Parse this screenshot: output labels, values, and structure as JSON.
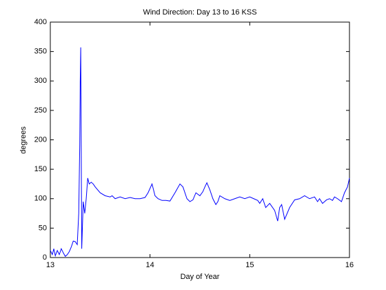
{
  "chart_data": {
    "type": "line",
    "title": "Wind Direction: Day 13 to 16 KSS",
    "x_label": "Day of Year",
    "y_label": "degrees",
    "xlim": [
      13,
      16
    ],
    "xticks": [
      13,
      14,
      15,
      16
    ],
    "ylim": [
      0,
      400
    ],
    "yticks": [
      0,
      50,
      100,
      150,
      200,
      250,
      300,
      350,
      400
    ],
    "series": [
      {
        "name": "wind direction",
        "color": "#0000ff",
        "x": [
          13.0,
          13.02,
          13.035,
          13.05,
          13.07,
          13.09,
          13.11,
          13.13,
          13.15,
          13.17,
          13.19,
          13.21,
          13.23,
          13.25,
          13.27,
          13.285,
          13.295,
          13.3,
          13.305,
          13.31,
          13.315,
          13.33,
          13.345,
          13.36,
          13.375,
          13.39,
          13.41,
          13.43,
          13.45,
          13.5,
          13.55,
          13.6,
          13.62,
          13.65,
          13.7,
          13.75,
          13.8,
          13.85,
          13.9,
          13.95,
          13.98,
          14.02,
          14.05,
          14.08,
          14.12,
          14.16,
          14.2,
          14.25,
          14.3,
          14.33,
          14.37,
          14.4,
          14.43,
          14.46,
          14.5,
          14.53,
          14.55,
          14.57,
          14.6,
          14.63,
          14.66,
          14.68,
          14.7,
          14.75,
          14.8,
          14.85,
          14.9,
          14.95,
          15.0,
          15.04,
          15.08,
          15.1,
          15.13,
          15.16,
          15.2,
          15.25,
          15.28,
          15.3,
          15.32,
          15.35,
          15.4,
          15.45,
          15.5,
          15.55,
          15.6,
          15.65,
          15.68,
          15.7,
          15.73,
          15.77,
          15.8,
          15.83,
          15.85,
          15.88,
          15.92,
          15.95,
          15.98,
          16.0
        ],
        "values": [
          12,
          5,
          15,
          3,
          12,
          5,
          15,
          8,
          2,
          5,
          10,
          18,
          28,
          27,
          22,
          75,
          190,
          300,
          357,
          190,
          15,
          95,
          75,
          100,
          135,
          125,
          128,
          125,
          120,
          110,
          105,
          103,
          105,
          100,
          103,
          100,
          102,
          100,
          100,
          102,
          110,
          125,
          105,
          100,
          97,
          97,
          96,
          110,
          125,
          120,
          100,
          95,
          98,
          110,
          105,
          112,
          120,
          127,
          115,
          100,
          90,
          95,
          105,
          100,
          97,
          100,
          103,
          100,
          103,
          100,
          97,
          92,
          100,
          85,
          92,
          80,
          62,
          85,
          90,
          65,
          85,
          98,
          100,
          105,
          100,
          103,
          95,
          100,
          92,
          98,
          100,
          97,
          103,
          100,
          95,
          110,
          120,
          135
        ]
      }
    ]
  }
}
